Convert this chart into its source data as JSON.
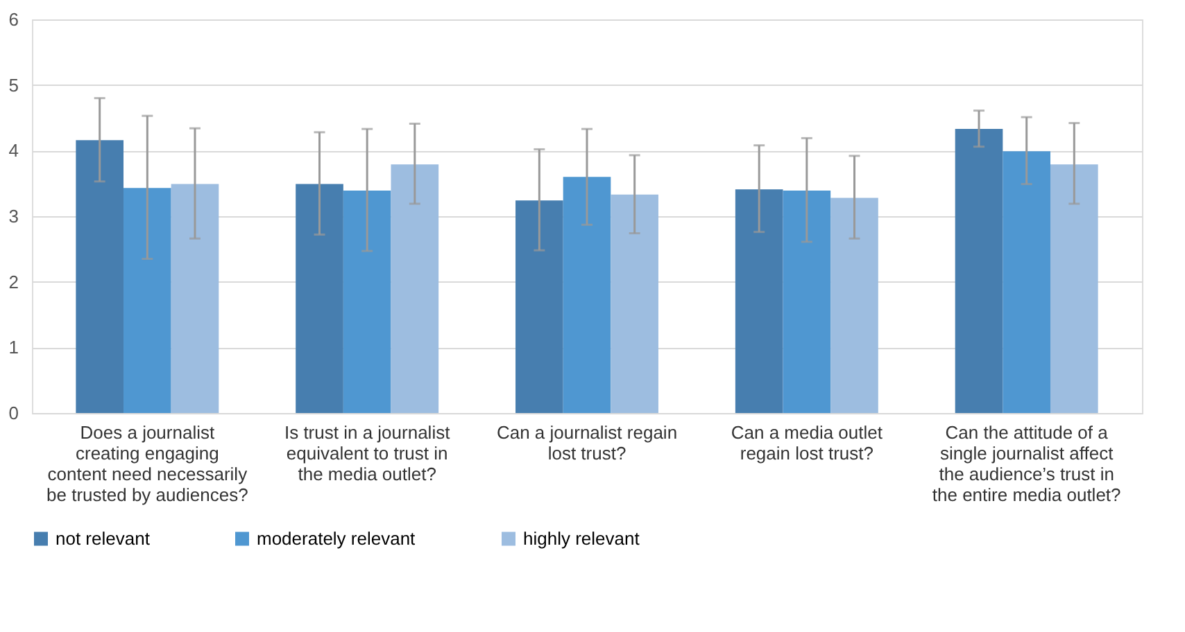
{
  "chart_data": {
    "type": "bar",
    "categories": [
      "Does a journalist creating engaging content need necessarily be trusted by audiences?",
      "Is trust in a journalist equivalent to trust in the media outlet?",
      "Can a journalist regain lost trust?",
      "Can a media outlet regain lost trust?",
      "Can the attitude of a single journalist affect the audience’s trust in the entire media outlet?"
    ],
    "series": [
      {
        "name": "not relevant",
        "color": "#477eaf",
        "values": [
          4.16,
          3.49,
          3.24,
          3.41,
          4.33
        ],
        "errors": [
          [
            3.53,
            4.8
          ],
          [
            2.72,
            4.28
          ],
          [
            2.48,
            4.02
          ],
          [
            2.76,
            4.08
          ],
          [
            4.06,
            4.61
          ]
        ]
      },
      {
        "name": "moderately relevant",
        "color": "#4f97d1",
        "values": [
          3.43,
          3.39,
          3.6,
          3.39,
          3.99
        ],
        "errors": [
          [
            2.35,
            4.53
          ],
          [
            2.47,
            4.33
          ],
          [
            2.87,
            4.33
          ],
          [
            2.61,
            4.19
          ],
          [
            3.49,
            4.51
          ]
        ]
      },
      {
        "name": "highly relevant",
        "color": "#9dbde0",
        "values": [
          3.49,
          3.79,
          3.33,
          3.28,
          3.79
        ],
        "errors": [
          [
            2.66,
            4.34
          ],
          [
            3.19,
            4.41
          ],
          [
            2.74,
            3.93
          ],
          [
            2.66,
            3.92
          ],
          [
            3.19,
            4.42
          ]
        ]
      }
    ],
    "ylim": [
      0,
      6
    ],
    "yticks": [
      0,
      1,
      2,
      3,
      4,
      5,
      6
    ],
    "grid": "y",
    "legend": "bottom"
  }
}
